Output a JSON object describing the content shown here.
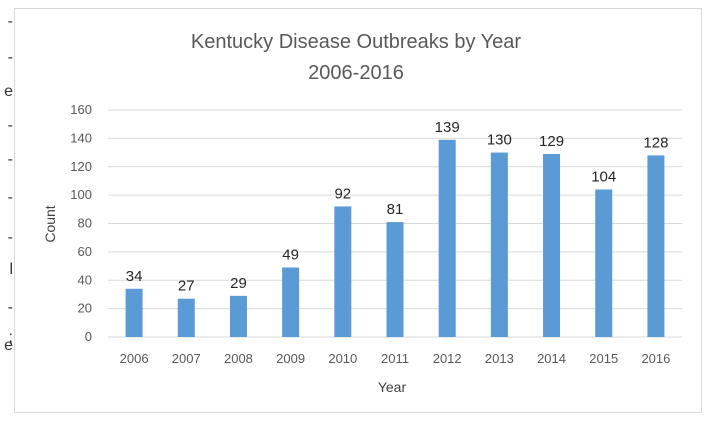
{
  "edge_fragments": [
    "-",
    "-",
    "e",
    "-",
    "-",
    "-",
    "-",
    "l",
    "-",
    ";",
    "e"
  ],
  "chart_data": {
    "type": "bar",
    "title": "Kentucky Disease Outbreaks by Year",
    "subtitle": "2006-2016",
    "xlabel": "Year",
    "ylabel": "Count",
    "categories": [
      "2006",
      "2007",
      "2008",
      "2009",
      "2010",
      "2011",
      "2012",
      "2013",
      "2014",
      "2015",
      "2016"
    ],
    "values": [
      34,
      27,
      29,
      49,
      92,
      81,
      139,
      130,
      129,
      104,
      128
    ],
    "ylim": [
      0,
      160
    ],
    "yticks": [
      0,
      20,
      40,
      60,
      80,
      100,
      120,
      140,
      160
    ],
    "grid": true,
    "data_labels": true,
    "bar_color": "#5b9bd5",
    "grid_color": "#d9d9d9"
  }
}
